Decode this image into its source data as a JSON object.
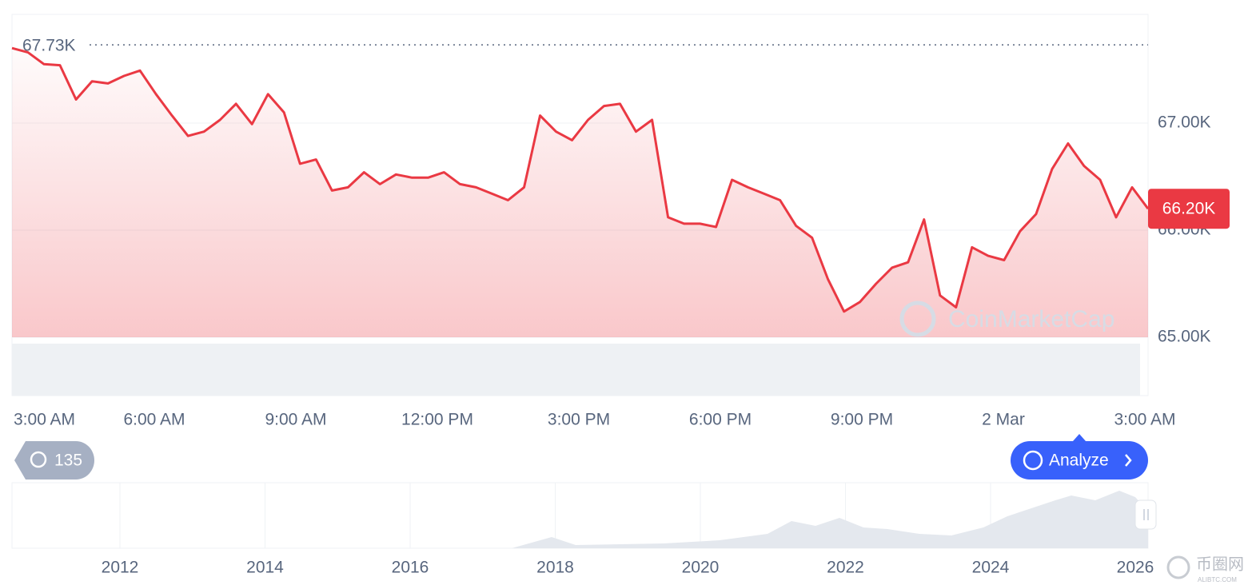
{
  "chart_data": {
    "type": "line",
    "color": "#ea3943",
    "values": [
      67700,
      67660,
      67550,
      67540,
      67220,
      67390,
      67370,
      67440,
      67490,
      67270,
      67070,
      66880,
      66920,
      67030,
      67180,
      66990,
      67270,
      67100,
      66620,
      66660,
      66370,
      66400,
      66540,
      66430,
      66520,
      66490,
      66490,
      66540,
      66430,
      66400,
      66340,
      66280,
      66400,
      67070,
      66920,
      66840,
      67030,
      67160,
      67180,
      66920,
      67030,
      66120,
      66060,
      66060,
      66030,
      66470,
      66400,
      66340,
      66280,
      66040,
      65930,
      65540,
      65240,
      65330,
      65500,
      65650,
      65700,
      66100,
      65390,
      65280,
      65840,
      65760,
      65720,
      65990,
      66150,
      66570,
      66810,
      66600,
      66470,
      66120,
      66400,
      66200
    ],
    "x_labels": [
      "3:00 AM",
      "6:00 AM",
      "9:00 AM",
      "12:00 PM",
      "3:00 PM",
      "6:00 PM",
      "9:00 PM",
      "2 Mar",
      "3:00 AM"
    ],
    "ylim": [
      64455,
      68015
    ],
    "yticks": [
      {
        "value": 65000,
        "label": "65.00K"
      },
      {
        "value": 66000,
        "label": "66.00K"
      },
      {
        "value": 67000,
        "label": "67.00K"
      }
    ],
    "grid": true,
    "high_marker": {
      "value": 67730,
      "label": "67.73K"
    },
    "last_price": {
      "value": 66200,
      "label": "66.20K"
    }
  },
  "ui": {
    "watermark": "CoinMarketCap",
    "history_badge": "135",
    "analyze_button": "Analyze",
    "navigator_years": [
      "2012",
      "2014",
      "2016",
      "2018",
      "2020",
      "2022",
      "2024",
      "2026"
    ],
    "site_logo": {
      "name": "币圈网",
      "url": "ALIBTC.COM"
    }
  }
}
